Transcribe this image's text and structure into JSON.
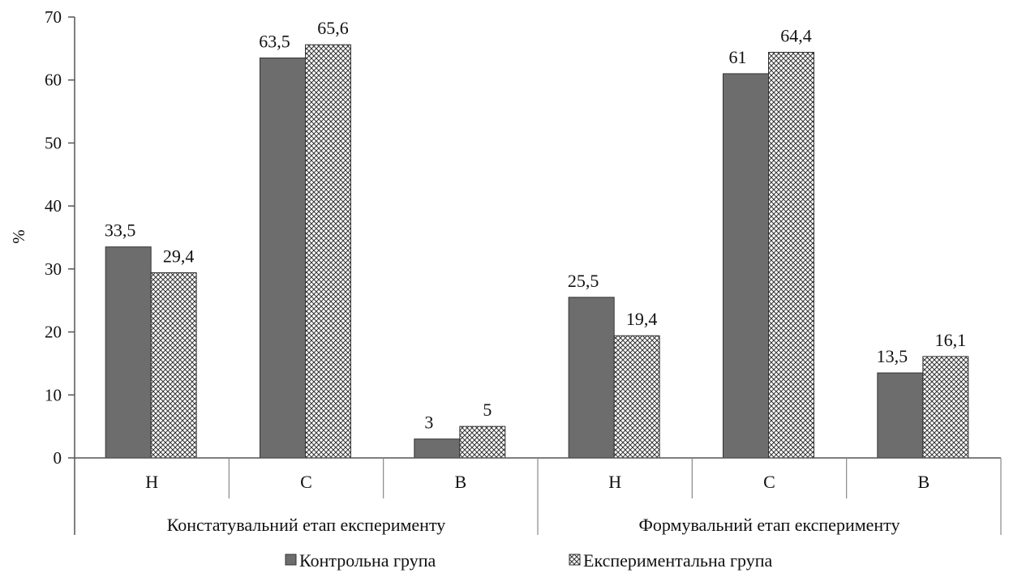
{
  "chart_data": {
    "type": "bar",
    "ylabel": "%",
    "ylim": [
      0,
      70
    ],
    "yticks": [
      0,
      10,
      20,
      30,
      40,
      50,
      60,
      70
    ],
    "groups": [
      {
        "label": "Констатувальний етап експерименту",
        "categories": [
          "Н",
          "С",
          "В"
        ]
      },
      {
        "label": "Формувальний етап експерименту",
        "categories": [
          "Н",
          "С",
          "В"
        ]
      }
    ],
    "categories": [
      "Н",
      "С",
      "В",
      "Н",
      "С",
      "В"
    ],
    "series": [
      {
        "name": "Контрольна група",
        "color": "#6d6d6d",
        "pattern": "solid",
        "values": [
          33.5,
          63.5,
          3,
          25.5,
          61,
          13.5
        ],
        "labels": [
          "33,5",
          "63,5",
          "3",
          "25,5",
          "61",
          "13,5"
        ]
      },
      {
        "name": "Експериментальна група",
        "color": "#ffffff",
        "pattern": "crosshatch",
        "values": [
          29.4,
          65.6,
          5,
          19.4,
          64.4,
          16.1
        ],
        "labels": [
          "29,4",
          "65,6",
          "5",
          "19,4",
          "64,4",
          "16,1"
        ]
      }
    ],
    "legend_position": "bottom",
    "grid": false
  }
}
